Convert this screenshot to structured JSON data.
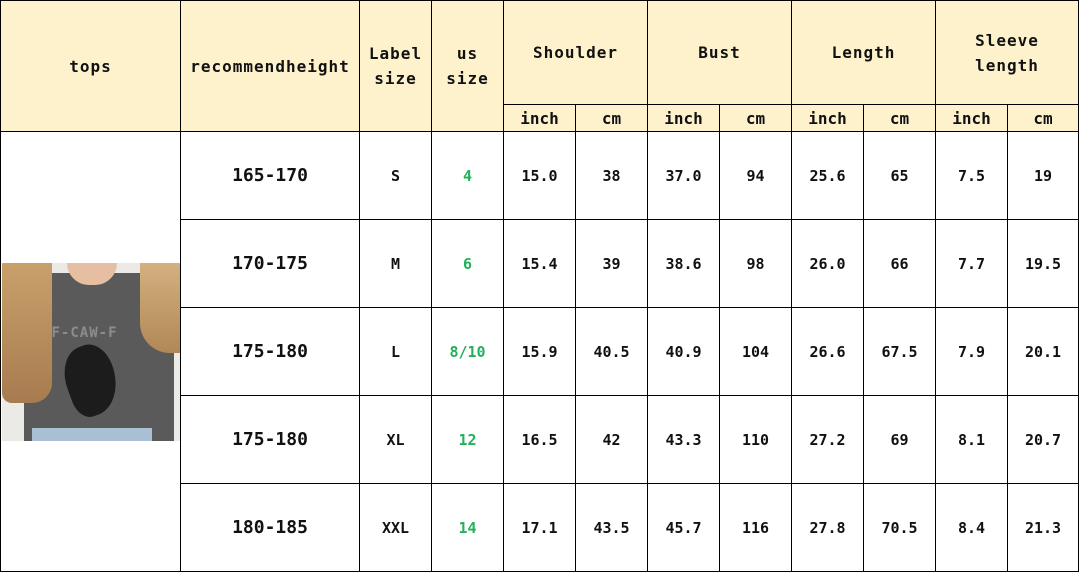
{
  "headers": {
    "tops": "tops",
    "recommend": "recommendheight",
    "label1": "Label",
    "label2": "size",
    "us1": "us",
    "us2": "size",
    "shoulder": "Shoulder",
    "bust": "Bust",
    "length": "Length",
    "sleeve1": "Sleeve",
    "sleeve2": "length",
    "inch": "inch",
    "cm": "cm"
  },
  "product_image": {
    "alt": "charcoal t-shirt with raven print",
    "print_text": "F-CAW-F"
  },
  "colors": {
    "header_bg": "#fdf2cc",
    "us_size_text": "#22b15a"
  },
  "rows": [
    {
      "height": "165-170",
      "label": "S",
      "us": "4",
      "shoulder_in": "15.0",
      "shoulder_cm": "38",
      "bust_in": "37.0",
      "bust_cm": "94",
      "length_in": "25.6",
      "length_cm": "65",
      "sleeve_in": "7.5",
      "sleeve_cm": "19"
    },
    {
      "height": "170-175",
      "label": "M",
      "us": "6",
      "shoulder_in": "15.4",
      "shoulder_cm": "39",
      "bust_in": "38.6",
      "bust_cm": "98",
      "length_in": "26.0",
      "length_cm": "66",
      "sleeve_in": "7.7",
      "sleeve_cm": "19.5"
    },
    {
      "height": "175-180",
      "label": "L",
      "us": "8/10",
      "shoulder_in": "15.9",
      "shoulder_cm": "40.5",
      "bust_in": "40.9",
      "bust_cm": "104",
      "length_in": "26.6",
      "length_cm": "67.5",
      "sleeve_in": "7.9",
      "sleeve_cm": "20.1"
    },
    {
      "height": "175-180",
      "label": "XL",
      "us": "12",
      "shoulder_in": "16.5",
      "shoulder_cm": "42",
      "bust_in": "43.3",
      "bust_cm": "110",
      "length_in": "27.2",
      "length_cm": "69",
      "sleeve_in": "8.1",
      "sleeve_cm": "20.7"
    },
    {
      "height": "180-185",
      "label": "XXL",
      "us": "14",
      "shoulder_in": "17.1",
      "shoulder_cm": "43.5",
      "bust_in": "45.7",
      "bust_cm": "116",
      "length_in": "27.8",
      "length_cm": "70.5",
      "sleeve_in": "8.4",
      "sleeve_cm": "21.3"
    }
  ]
}
